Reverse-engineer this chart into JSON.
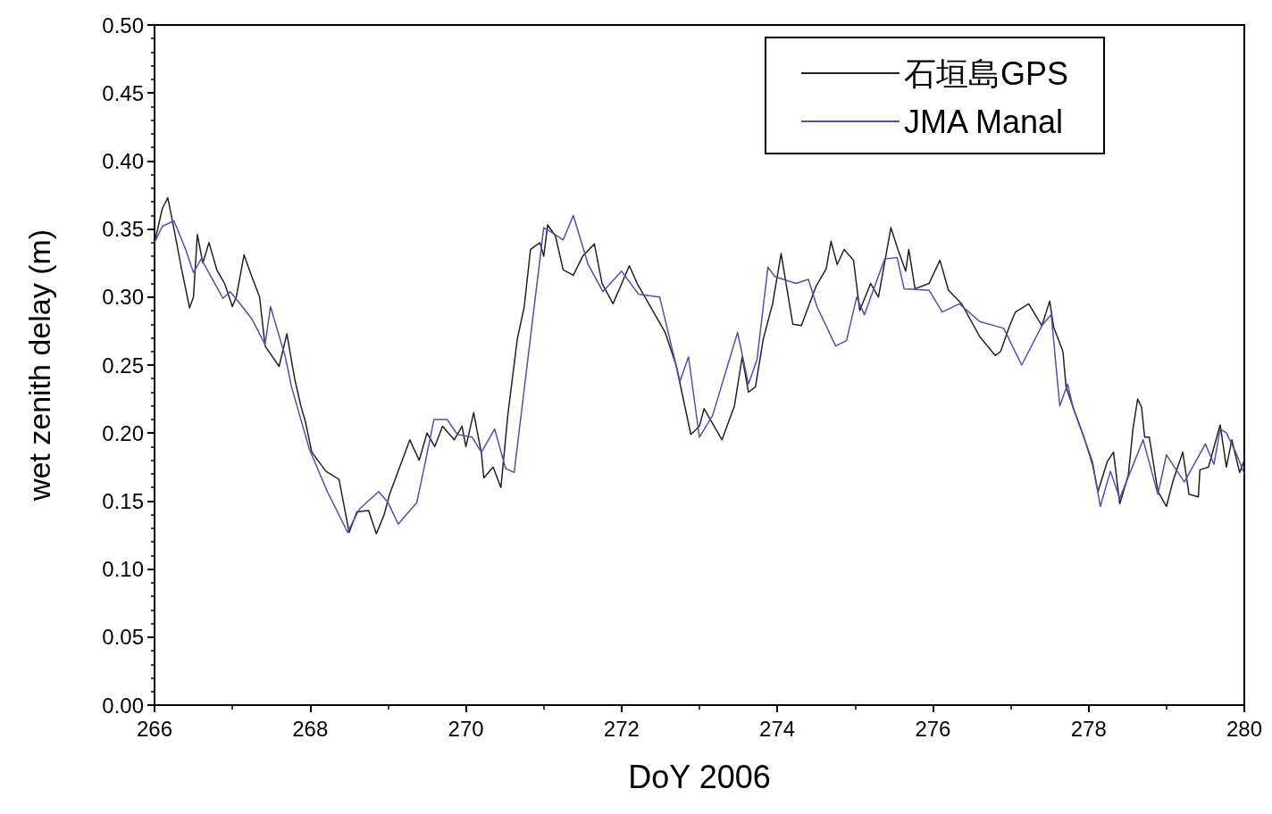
{
  "chart_data": {
    "type": "line",
    "xlabel": "DoY 2006",
    "ylabel": "wet zenith delay (m)",
    "xlim": [
      266,
      280
    ],
    "xticks": [
      266,
      268,
      270,
      272,
      274,
      276,
      278,
      280
    ],
    "ylim": [
      0,
      0.5
    ],
    "yticks": [
      {
        "value": 0,
        "label": "0.00"
      },
      0.05,
      {
        "value": 0.1,
        "label": "0.10"
      },
      0.15,
      {
        "value": 0.2,
        "label": "0.20"
      },
      0.25,
      {
        "value": 0.3,
        "label": "0.30"
      },
      0.35,
      {
        "value": 0.4,
        "label": "0.40"
      },
      0.45,
      {
        "value": 0.5,
        "label": "0.50"
      }
    ],
    "grid": false,
    "legend": "top right",
    "marker": "none",
    "line_style": "solid",
    "series": [
      {
        "name": "石垣島GPS",
        "color": "#222222",
        "x": [
          266.0,
          266.1,
          266.17,
          266.25,
          266.35,
          266.45,
          266.5,
          266.55,
          266.62,
          266.7,
          266.8,
          266.9,
          267.0,
          267.05,
          267.15,
          267.25,
          267.35,
          267.42,
          267.6,
          267.7,
          267.8,
          267.88,
          267.94,
          268.02,
          268.2,
          268.37,
          268.5,
          268.6,
          268.75,
          268.85,
          268.95,
          269.02,
          269.15,
          269.28,
          269.4,
          269.5,
          269.6,
          269.7,
          269.85,
          269.95,
          270.0,
          270.1,
          270.2,
          270.23,
          270.35,
          270.45,
          270.54,
          270.66,
          270.75,
          270.83,
          270.95,
          271.0,
          271.05,
          271.15,
          271.25,
          271.38,
          271.5,
          271.65,
          271.75,
          271.89,
          272.1,
          272.2,
          272.35,
          272.56,
          272.7,
          272.89,
          273.0,
          273.06,
          273.29,
          273.45,
          273.55,
          273.63,
          273.72,
          273.82,
          273.94,
          274.05,
          274.2,
          274.31,
          274.5,
          274.63,
          274.69,
          274.77,
          274.86,
          274.98,
          275.06,
          275.2,
          275.3,
          275.46,
          275.55,
          275.65,
          275.69,
          275.77,
          275.95,
          276.09,
          276.2,
          276.37,
          276.6,
          276.8,
          276.87,
          276.98,
          277.06,
          277.23,
          277.4,
          277.5,
          277.55,
          277.67,
          277.71,
          277.8,
          277.94,
          278.05,
          278.12,
          278.24,
          278.32,
          278.4,
          278.51,
          278.57,
          278.63,
          278.68,
          278.72,
          278.78,
          278.89,
          279.0,
          279.08,
          279.21,
          279.29,
          279.41,
          279.43,
          279.54,
          279.69,
          279.77,
          279.84,
          279.94,
          280.0
        ],
        "values": [
          0.34,
          0.365,
          0.373,
          0.35,
          0.32,
          0.292,
          0.3,
          0.346,
          0.325,
          0.34,
          0.32,
          0.31,
          0.293,
          0.3,
          0.331,
          0.315,
          0.3,
          0.264,
          0.249,
          0.273,
          0.24,
          0.22,
          0.208,
          0.186,
          0.172,
          0.166,
          0.127,
          0.142,
          0.143,
          0.126,
          0.14,
          0.155,
          0.175,
          0.195,
          0.18,
          0.2,
          0.19,
          0.205,
          0.195,
          0.205,
          0.19,
          0.215,
          0.185,
          0.167,
          0.175,
          0.16,
          0.214,
          0.269,
          0.293,
          0.335,
          0.34,
          0.33,
          0.353,
          0.345,
          0.32,
          0.316,
          0.33,
          0.339,
          0.31,
          0.295,
          0.323,
          0.31,
          0.295,
          0.274,
          0.25,
          0.199,
          0.205,
          0.218,
          0.195,
          0.22,
          0.256,
          0.23,
          0.234,
          0.269,
          0.295,
          0.332,
          0.28,
          0.279,
          0.308,
          0.321,
          0.341,
          0.324,
          0.335,
          0.327,
          0.29,
          0.31,
          0.3,
          0.351,
          0.335,
          0.319,
          0.335,
          0.306,
          0.31,
          0.327,
          0.305,
          0.295,
          0.271,
          0.257,
          0.26,
          0.278,
          0.289,
          0.295,
          0.279,
          0.297,
          0.278,
          0.26,
          0.234,
          0.219,
          0.197,
          0.177,
          0.157,
          0.179,
          0.186,
          0.148,
          0.169,
          0.203,
          0.225,
          0.219,
          0.197,
          0.197,
          0.157,
          0.146,
          0.164,
          0.186,
          0.155,
          0.153,
          0.173,
          0.175,
          0.206,
          0.175,
          0.195,
          0.171,
          0.18
        ]
      },
      {
        "name": "JMA Manal",
        "color": "#5050b0",
        "x": [
          266.0,
          266.1,
          266.25,
          266.4,
          266.5,
          266.6,
          266.88,
          266.97,
          267.1,
          267.25,
          267.42,
          267.49,
          267.68,
          267.76,
          267.99,
          268.22,
          268.48,
          268.63,
          268.88,
          269.0,
          269.13,
          269.37,
          269.48,
          269.59,
          269.76,
          269.89,
          270.08,
          270.2,
          270.37,
          270.51,
          270.62,
          271.0,
          271.09,
          271.25,
          271.38,
          271.57,
          271.76,
          272.0,
          272.22,
          272.49,
          272.75,
          272.86,
          273.0,
          273.17,
          273.49,
          273.63,
          273.74,
          273.88,
          273.97,
          274.24,
          274.4,
          274.51,
          274.75,
          274.89,
          275.02,
          275.12,
          275.38,
          275.54,
          275.63,
          275.95,
          276.12,
          276.34,
          276.6,
          276.91,
          277.14,
          277.4,
          277.52,
          277.63,
          277.73,
          277.8,
          278.05,
          278.15,
          278.28,
          278.4,
          278.7,
          278.89,
          279.0,
          279.23,
          279.5,
          279.61,
          279.69,
          279.77,
          279.89,
          280.0
        ],
        "values": [
          0.34,
          0.352,
          0.356,
          0.335,
          0.318,
          0.328,
          0.299,
          0.304,
          0.295,
          0.284,
          0.265,
          0.293,
          0.256,
          0.234,
          0.188,
          0.157,
          0.127,
          0.144,
          0.157,
          0.149,
          0.133,
          0.149,
          0.179,
          0.21,
          0.21,
          0.199,
          0.197,
          0.186,
          0.203,
          0.174,
          0.171,
          0.351,
          0.348,
          0.342,
          0.36,
          0.324,
          0.304,
          0.319,
          0.302,
          0.3,
          0.238,
          0.256,
          0.197,
          0.213,
          0.274,
          0.236,
          0.254,
          0.322,
          0.315,
          0.31,
          0.313,
          0.293,
          0.264,
          0.268,
          0.3,
          0.287,
          0.328,
          0.329,
          0.306,
          0.305,
          0.289,
          0.295,
          0.282,
          0.277,
          0.25,
          0.279,
          0.287,
          0.22,
          0.236,
          0.219,
          0.179,
          0.146,
          0.172,
          0.152,
          0.195,
          0.155,
          0.184,
          0.164,
          0.192,
          0.177,
          0.203,
          0.2,
          0.186,
          0.17
        ]
      }
    ]
  }
}
